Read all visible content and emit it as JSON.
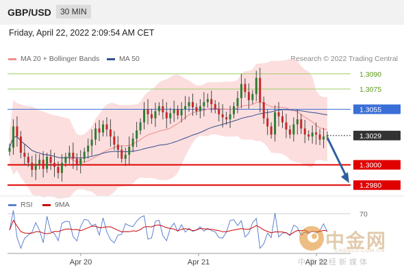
{
  "header": {
    "pair": "GBP/USD",
    "timeframe": "30 MIN"
  },
  "datetime": "Friday, April 22, 2022 2:09:54 AM CET",
  "legend_main": [
    {
      "label": "MA 20 + Bollinger Bands",
      "color": "#f28b8b"
    },
    {
      "label": "MA 50",
      "color": "#2f4f8f"
    }
  ],
  "legend_rsi": [
    {
      "label": "RSI",
      "color": "#5b7fd0"
    },
    {
      "label": "9MA",
      "color": "#cc0000"
    }
  ],
  "credit": "Research © 2022 Trading Central",
  "watermark": {
    "name": "中金网",
    "domain": "CNGOLD.COM.CN",
    "tagline": "中文财经新媒体"
  },
  "chart_data": {
    "type": "candlestick",
    "price_range": [
      1.2972,
      1.3098
    ],
    "levels": [
      {
        "label": "1.3090",
        "value": 1.309,
        "color": "#9ccc65",
        "text_color": "#5a9a1a",
        "style": "thin"
      },
      {
        "label": "1.3075",
        "value": 1.3075,
        "color": "#9ccc65",
        "text_color": "#5a9a1a",
        "style": "thin"
      },
      {
        "label": "1.3055",
        "value": 1.3055,
        "color": "#3a6fd8",
        "text_color": "#ffffff",
        "style": "tag"
      },
      {
        "label": "1.3029",
        "value": 1.3029,
        "color": "#333333",
        "text_color": "#ffffff",
        "style": "current"
      },
      {
        "label": "1.3000",
        "value": 1.3,
        "color": "#e00000",
        "text_color": "#ffffff",
        "style": "tag"
      },
      {
        "label": "1.2980",
        "value": 1.298,
        "color": "#e00000",
        "text_color": "#ffffff",
        "style": "tag"
      }
    ],
    "x_ticks": [
      "Apr 20",
      "Apr 21",
      "Apr 22"
    ],
    "rsi_level": "70",
    "rsi_level_value": 70,
    "rsi_range": [
      25,
      75
    ],
    "arrow": {
      "from": 1.3027,
      "to": 1.2982,
      "color": "#2f5fa0"
    },
    "close": [
      1.3017,
      1.3038,
      1.3028,
      1.3012,
      1.3008,
      1.3002,
      1.2995,
      1.3001,
      1.3005,
      1.2996,
      1.3008,
      1.3002,
      1.2998,
      1.2992,
      1.3002,
      1.3008,
      1.3012,
      1.3006,
      1.3,
      1.3006,
      1.3013,
      1.3019,
      1.3025,
      1.3036,
      1.3032,
      1.304,
      1.3035,
      1.3028,
      1.302,
      1.3015,
      1.3006,
      1.301,
      1.3018,
      1.3026,
      1.3034,
      1.3042,
      1.3055,
      1.305,
      1.3046,
      1.3053,
      1.3058,
      1.3052,
      1.3046,
      1.3051,
      1.3055,
      1.3049,
      1.3055,
      1.3058,
      1.3062,
      1.3057,
      1.3053,
      1.3058,
      1.3062,
      1.3065,
      1.306,
      1.3055,
      1.305,
      1.3047,
      1.3045,
      1.305,
      1.3058,
      1.3066,
      1.308,
      1.3072,
      1.3064,
      1.307,
      1.3086,
      1.3062,
      1.3046,
      1.3038,
      1.303,
      1.3052,
      1.3048,
      1.3042,
      1.3035,
      1.303,
      1.304,
      1.3045,
      1.3036,
      1.303,
      1.3028,
      1.3032,
      1.303,
      1.3025,
      1.3028,
      1.3029
    ]
  }
}
